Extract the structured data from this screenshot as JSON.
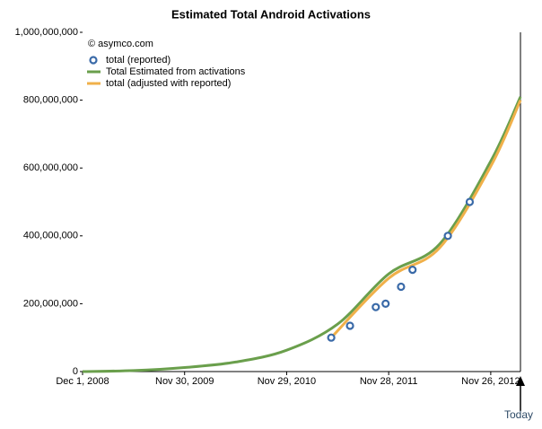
{
  "chart_data": {
    "type": "line",
    "title": "Estimated Total Android Activations",
    "annotations": [
      "© asymco.com",
      "Today"
    ],
    "xlim": [
      "2008-12-01",
      "2013-03-12"
    ],
    "xticks": [
      {
        "value": "2008-12-01",
        "label": "Dec 1, 2008"
      },
      {
        "value": "2009-11-30",
        "label": "Nov 30, 2009"
      },
      {
        "value": "2010-11-29",
        "label": "Nov 29, 2010"
      },
      {
        "value": "2011-11-28",
        "label": "Nov 28, 2011"
      },
      {
        "value": "2012-11-26",
        "label": "Nov 26, 2012"
      }
    ],
    "ylim": [
      0,
      1000000000
    ],
    "yticks": [
      0,
      {
        "value": 200000000,
        "label": "200,000,000"
      },
      {
        "value": 400000000,
        "label": "400,000,000"
      },
      {
        "value": 600000000,
        "label": "600,000,000"
      },
      {
        "value": 800000000,
        "label": "800,000,000"
      },
      {
        "value": 1000000000,
        "label": "1,000,000,000"
      }
    ],
    "series": [
      {
        "name": "total (reported)",
        "type": "scatter",
        "color": "#3a6aa8",
        "x": [
          "2011-05-07",
          "2011-07-13",
          "2011-10-13",
          "2011-11-17",
          "2012-01-11",
          "2012-02-21",
          "2012-06-26",
          "2012-09-12"
        ],
        "values": [
          100000000,
          135000000,
          190000000,
          200000000,
          250000000,
          300000000,
          400000000,
          500000000
        ]
      },
      {
        "name": "Total Estimated from activations",
        "type": "line",
        "color": "#6a9f4c",
        "x": [
          "2008-12-01",
          "2009-06-01",
          "2009-11-30",
          "2010-05-31",
          "2010-11-29",
          "2011-05-30",
          "2011-11-28",
          "2012-05-28",
          "2012-11-26",
          "2013-03-12"
        ],
        "values": [
          0,
          3000000,
          12000000,
          28000000,
          63000000,
          140000000,
          288000000,
          376000000,
          620000000,
          810000000
        ]
      },
      {
        "name": "total (adjusted with reported)",
        "type": "line",
        "color": "#f0b04a",
        "x": [
          "2011-05-07",
          "2011-11-28",
          "2012-05-28",
          "2012-11-26",
          "2013-03-12"
        ],
        "values": [
          100000000,
          275000000,
          365000000,
          605000000,
          800000000
        ]
      }
    ],
    "legend": "top-left"
  }
}
